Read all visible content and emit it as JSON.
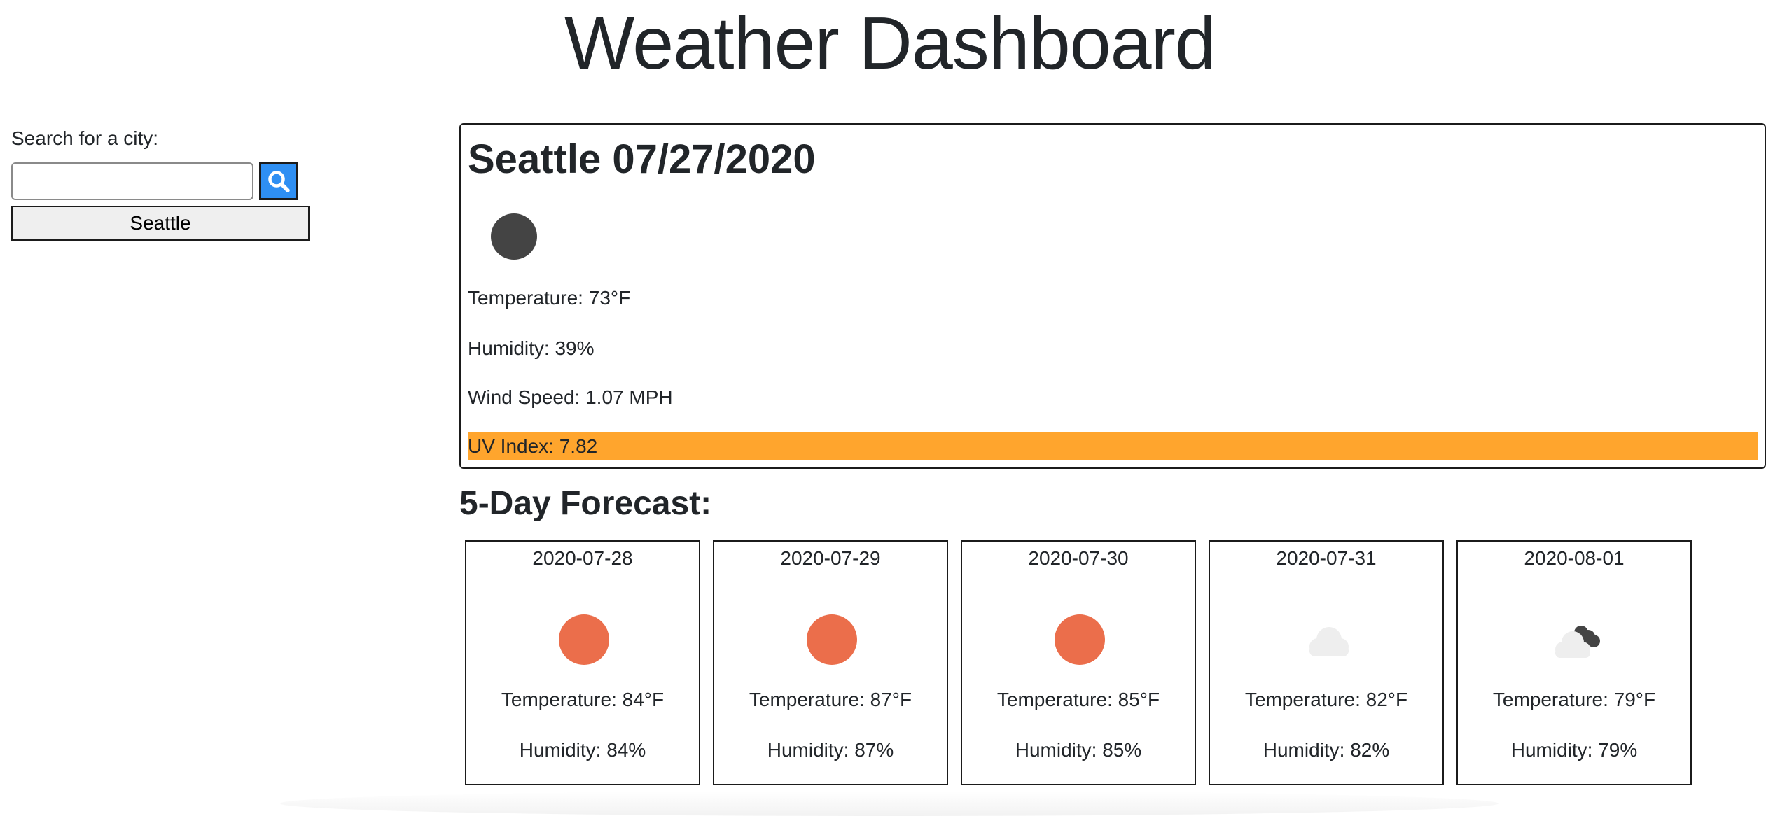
{
  "header": {
    "title": "Weather Dashboard"
  },
  "sidebar": {
    "search_label": "Search for a city:",
    "search_value": "",
    "search_placeholder": "",
    "search_icon": "search-icon",
    "history": [
      "Seattle"
    ]
  },
  "current": {
    "title": "Seattle 07/27/2020",
    "icon": "moon-icon",
    "temperature": "Temperature: 73°F",
    "humidity": "Humidity: 39%",
    "wind": "Wind Speed: 1.07 MPH",
    "uv": "UV Index: 7.82",
    "uv_color": "#ffa52d"
  },
  "forecast": {
    "heading": "5-Day Forecast:",
    "days": [
      {
        "date": "2020-07-28",
        "icon": "sun-icon",
        "temperature": "Temperature: 84°F",
        "humidity": "Humidity: 84%"
      },
      {
        "date": "2020-07-29",
        "icon": "sun-icon",
        "temperature": "Temperature: 87°F",
        "humidity": "Humidity: 87%"
      },
      {
        "date": "2020-07-30",
        "icon": "sun-icon",
        "temperature": "Temperature: 85°F",
        "humidity": "Humidity: 85%"
      },
      {
        "date": "2020-07-31",
        "icon": "cloud-icon",
        "temperature": "Temperature: 82°F",
        "humidity": "Humidity: 82%"
      },
      {
        "date": "2020-08-01",
        "icon": "cloud-moon-icon",
        "temperature": "Temperature: 79°F",
        "humidity": "Humidity: 79%"
      }
    ]
  },
  "colors": {
    "accent": "#2e8ff3",
    "sun": "#eb6e4b",
    "moon": "#444444",
    "cloud": "#eeeeee"
  }
}
